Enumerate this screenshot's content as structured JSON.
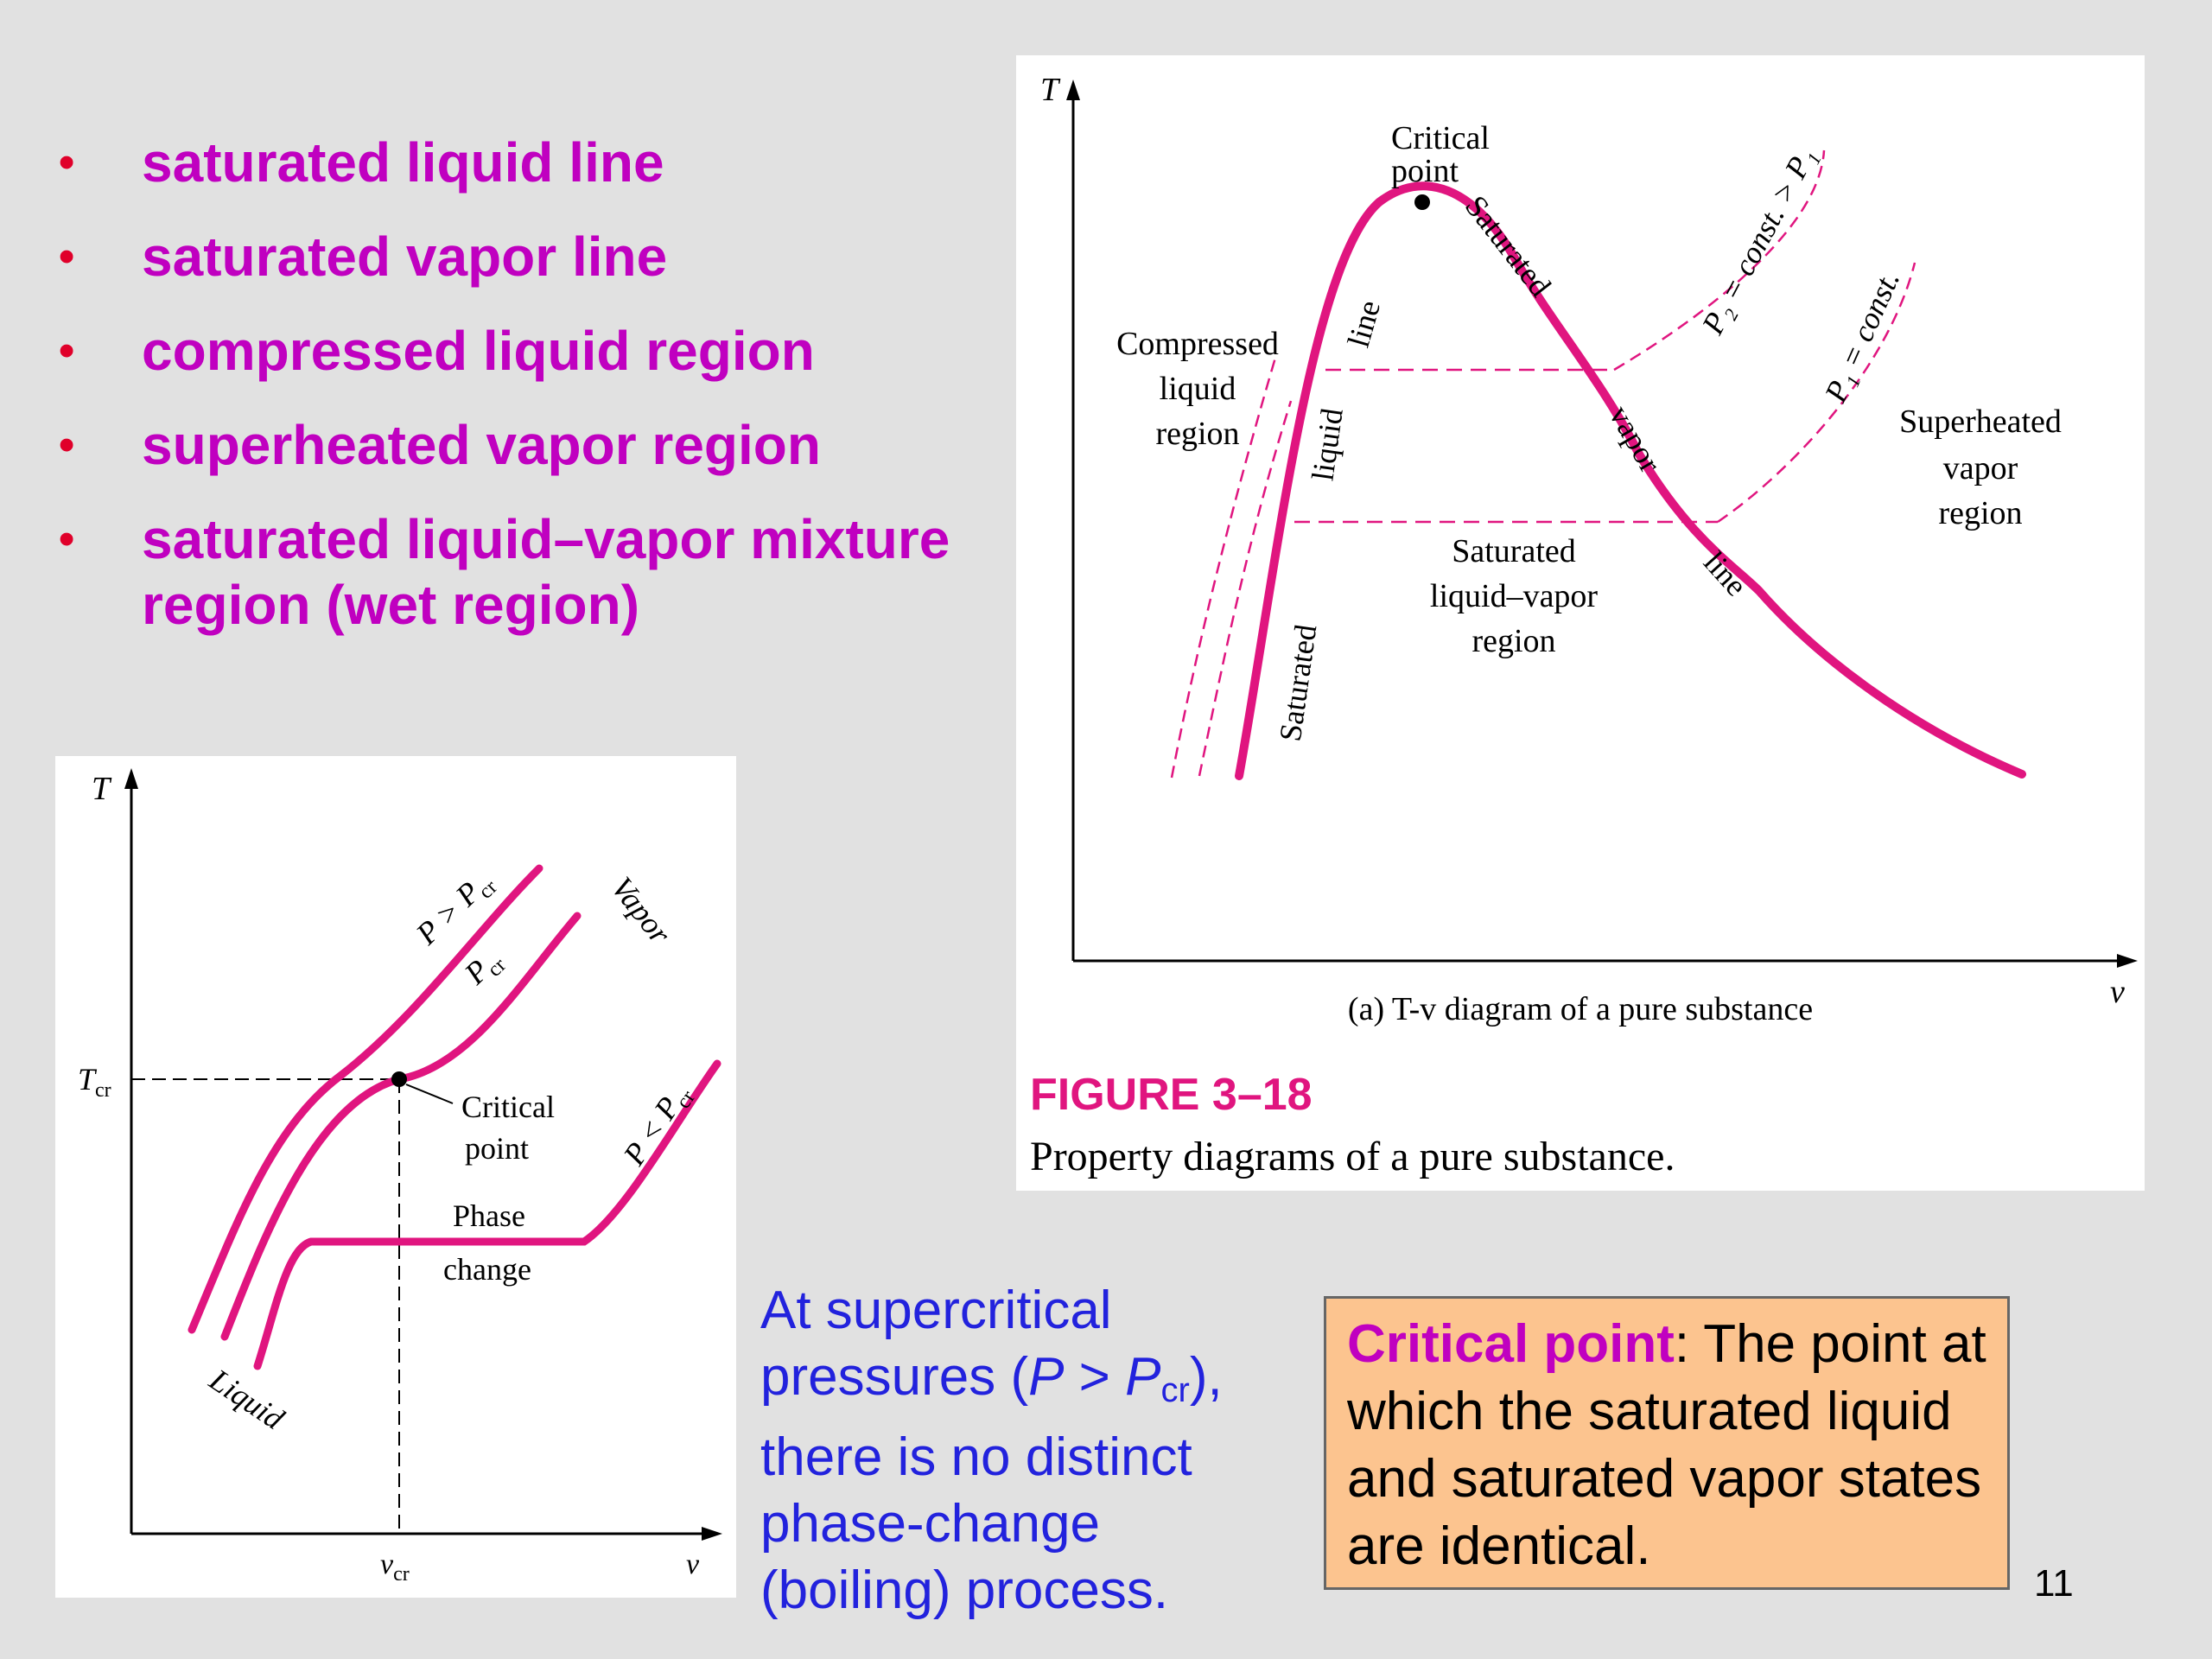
{
  "bullets": [
    "saturated liquid line",
    "saturated vapor line",
    "compressed liquid region",
    "superheated vapor region",
    "saturated liquid–vapor mixture region (wet region)"
  ],
  "bullet_glyph": "•",
  "tv_diagram": {
    "y_axis_label": "T",
    "x_axis_label": "v",
    "critical_point_label": [
      "Critical",
      "point"
    ],
    "compressed_region_label": [
      "Compressed",
      "liquid",
      "region"
    ],
    "superheated_region_label": [
      "Superheated",
      "vapor",
      "region"
    ],
    "mixture_region_label": [
      "Saturated",
      "liquid–vapor",
      "region"
    ],
    "sat_liquid_line_words": [
      "Saturated",
      "liquid",
      "line"
    ],
    "sat_vapor_line_words": [
      "Saturated",
      "vapor",
      "line"
    ],
    "isobar_p2_label": "P₂ = const. > P₁",
    "isobar_p1_label": "P₁ = const.",
    "caption_a": "(a) T-v diagram of a pure substance",
    "figure_number": "FIGURE 3–18",
    "figure_caption": "Property diagrams of a pure substance.",
    "curve_color": "#e0157f"
  },
  "pc_diagram": {
    "y_axis_label": "T",
    "x_axis_label": "v",
    "t_cr_label": "T",
    "t_cr_sub": "cr",
    "v_cr_label": "v",
    "v_cr_sub": "cr",
    "critical_point_label": [
      "Critical",
      "point"
    ],
    "phase_change_label": [
      "Phase",
      "change"
    ],
    "liquid_label": "Liquid",
    "vapor_label": "Vapor",
    "p_gt_label": "P > P",
    "p_cr_label": "P",
    "p_lt_label": "P < P",
    "cr_sub": "cr"
  },
  "supercritical_note": {
    "line1": "At supercritical",
    "line2_pre": "pressures (",
    "line2_p": "P",
    "line2_gt": " > ",
    "line2_pcr": "P",
    "line2_sub": "cr",
    "line2_post": "),",
    "line3": "there is no distinct",
    "line4": "phase-change",
    "line5": "(boiling) process."
  },
  "definition": {
    "term": "Critical point",
    "text": ": The point at which the saturated liquid and saturated vapor states are identical."
  },
  "page_number": "11"
}
